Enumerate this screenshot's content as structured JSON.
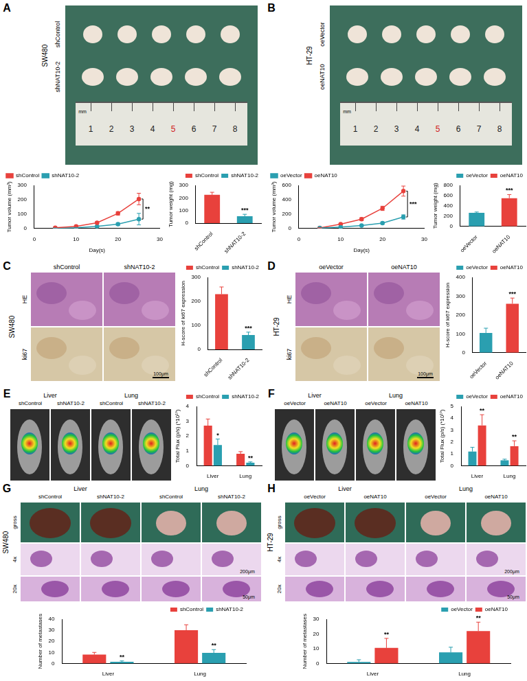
{
  "figure": {
    "photos": [
      {
        "panel": "A",
        "cell_line": "SW480",
        "rows": [
          "shControl",
          "shNAT10-2"
        ],
        "ruler": [
          1,
          2,
          3,
          4,
          5,
          6,
          7,
          8
        ],
        "ruler_unit": "mm"
      },
      {
        "panel": "B",
        "cell_line": "HT-29",
        "rows": [
          "oeVector",
          "oeNAT10"
        ],
        "ruler": [
          1,
          2,
          3,
          4,
          5,
          6,
          7,
          8
        ],
        "ruler_unit": "mm"
      },
      {
        "panel": "C",
        "cell_line": "SW480",
        "columns": [
          "shControl",
          "shNAT10-2"
        ],
        "rows": [
          "HE",
          "ki67"
        ],
        "scale_bar": "100μm"
      },
      {
        "panel": "D",
        "cell_line": "HT-29",
        "columns": [
          "oeVector",
          "oeNAT10"
        ],
        "rows": [
          "HE",
          "ki67"
        ],
        "scale_bar": "100μm"
      },
      {
        "panel": "E",
        "groups": [
          "Liver",
          "Lung"
        ],
        "columns": [
          "shControl",
          "shNAT10-2",
          "shControl",
          "shNAT10-2"
        ]
      },
      {
        "panel": "F",
        "groups": [
          "Liver",
          "Lung"
        ],
        "columns": [
          "oeVector",
          "oeNAT10",
          "oeVector",
          "oeNAT10"
        ]
      },
      {
        "panel": "G",
        "cell_line": "SW480",
        "groups": [
          "Liver",
          "Lung"
        ],
        "columns": [
          "shControl",
          "shNAT10-2",
          "shControl",
          "shNAT10-2"
        ],
        "rows": [
          "gross",
          "4x",
          "20x"
        ],
        "scale_bars": [
          "200μm",
          "50μm"
        ]
      },
      {
        "panel": "H",
        "cell_line": "HT-29",
        "groups": [
          "Liver",
          "Lung"
        ],
        "columns": [
          "oeVector",
          "oeNAT10",
          "oeVector",
          "oeNAT10"
        ],
        "rows": [
          "gross",
          "4x",
          "20x"
        ],
        "scale_bars": [
          "200μm",
          "50μm"
        ]
      }
    ]
  },
  "chart_data": [
    {
      "type": "line",
      "xlabel": "Day(s)",
      "ylabel": "Tumor volume (mm³)",
      "x": [
        5,
        10,
        15,
        20,
        25
      ],
      "xlim": [
        0,
        30
      ],
      "xticks": [
        0,
        10,
        20,
        30
      ],
      "ylim": [
        0,
        300
      ],
      "yticks": [
        0,
        100,
        200,
        300
      ],
      "grid": false,
      "legend": "top-left",
      "marker": "circle",
      "series": [
        {
          "name": "shControl",
          "color": "#e8413c",
          "values": [
            5,
            15,
            40,
            105,
            205
          ],
          "errors": [
            1,
            3,
            6,
            12,
            40
          ]
        },
        {
          "name": "shNAT10-2",
          "color": "#2a9fb0",
          "values": [
            2,
            5,
            15,
            30,
            65
          ],
          "errors": [
            1,
            2,
            4,
            8,
            40
          ]
        }
      ],
      "annotations": [
        {
          "text": "**",
          "x": 25
        }
      ]
    },
    {
      "type": "bar",
      "ylabel": "Tumor weight (mg)",
      "categories": [
        "shControl",
        "shNAT10-2"
      ],
      "values": [
        225,
        55
      ],
      "errors": [
        20,
        15
      ],
      "colors": [
        "#e8413c",
        "#2a9fb0"
      ],
      "ylim": [
        0,
        300
      ],
      "yticks": [
        0,
        100,
        200,
        300
      ],
      "grid": false,
      "legend": "top-right",
      "annotations": [
        {
          "text": "***",
          "index": 1
        }
      ]
    },
    {
      "type": "line",
      "xlabel": "Day(s)",
      "ylabel": "Tumor volume (mm³)",
      "x": [
        5,
        10,
        15,
        20,
        25
      ],
      "xlim": [
        0,
        30
      ],
      "xticks": [
        0,
        10,
        20,
        30
      ],
      "ylim": [
        0,
        600
      ],
      "yticks": [
        0,
        200,
        400,
        600
      ],
      "grid": false,
      "legend": "top-left",
      "marker": "circle",
      "series": [
        {
          "name": "oeVector",
          "color": "#2a9fb0",
          "values": [
            5,
            20,
            40,
            75,
            160
          ],
          "errors": [
            1,
            5,
            8,
            15,
            30
          ]
        },
        {
          "name": "oeNAT10",
          "color": "#e8413c",
          "values": [
            8,
            60,
            130,
            280,
            520
          ],
          "errors": [
            2,
            10,
            20,
            30,
            70
          ]
        }
      ],
      "annotations": [
        {
          "text": "***",
          "x": 25
        }
      ]
    },
    {
      "type": "bar",
      "ylabel": "Tumor weight (mg)",
      "categories": [
        "oeVector",
        "oeNAT10"
      ],
      "values": [
        265,
        550
      ],
      "errors": [
        15,
        70
      ],
      "colors": [
        "#2a9fb0",
        "#e8413c"
      ],
      "ylim": [
        0,
        800
      ],
      "yticks": [
        0,
        200,
        400,
        600,
        800
      ],
      "grid": false,
      "legend": "top-right",
      "annotations": [
        {
          "text": "***",
          "index": 1
        }
      ]
    },
    {
      "type": "bar",
      "ylabel": "H-score of ki67 expression",
      "categories": [
        "shControl",
        "shNAT10-2"
      ],
      "values": [
        230,
        60
      ],
      "errors": [
        30,
        12
      ],
      "colors": [
        "#e8413c",
        "#2a9fb0"
      ],
      "ylim": [
        0,
        300
      ],
      "yticks": [
        0,
        100,
        200,
        300
      ],
      "grid": false,
      "legend": "top-right",
      "annotations": [
        {
          "text": "***",
          "index": 1
        }
      ]
    },
    {
      "type": "bar",
      "ylabel": "H-score of ki67 expression",
      "categories": [
        "oeVector",
        "oeNAT10"
      ],
      "values": [
        105,
        260
      ],
      "errors": [
        25,
        30
      ],
      "colors": [
        "#2a9fb0",
        "#e8413c"
      ],
      "ylim": [
        0,
        400
      ],
      "yticks": [
        0,
        100,
        200,
        300,
        400
      ],
      "grid": false,
      "legend": "top-right",
      "annotations": [
        {
          "text": "***",
          "index": 1
        }
      ]
    },
    {
      "type": "bar",
      "ylabel": "Total Flux (p/s) (*10¹⁰)",
      "categories": [
        "Liver",
        "Lung"
      ],
      "series": [
        {
          "name": "shControl",
          "color": "#e8413c",
          "values": [
            2.7,
            0.8
          ],
          "errors": [
            0.45,
            0.15
          ]
        },
        {
          "name": "shNAT10-2",
          "color": "#2a9fb0",
          "values": [
            1.4,
            0.2
          ],
          "errors": [
            0.4,
            0.06
          ]
        }
      ],
      "ylim": [
        0,
        4
      ],
      "yticks": [
        0,
        1,
        2,
        3,
        4
      ],
      "grid": false,
      "legend": "top-right",
      "annotations": [
        {
          "text": "*",
          "series": 1,
          "index": 0
        },
        {
          "text": "**",
          "series": 1,
          "index": 1
        }
      ]
    },
    {
      "type": "bar",
      "ylabel": "Total Flux (p/s) (*10¹⁰)",
      "categories": [
        "Liver",
        "Lung"
      ],
      "series": [
        {
          "name": "oeVector",
          "color": "#2a9fb0",
          "values": [
            1.2,
            0.45
          ],
          "errors": [
            0.35,
            0.1
          ]
        },
        {
          "name": "oeNAT10",
          "color": "#e8413c",
          "values": [
            3.4,
            1.65
          ],
          "errors": [
            0.9,
            0.45
          ]
        }
      ],
      "ylim": [
        0,
        5
      ],
      "yticks": [
        0,
        1,
        2,
        3,
        4,
        5
      ],
      "grid": false,
      "legend": "top-right",
      "annotations": [
        {
          "text": "**",
          "series": 1,
          "index": 0
        },
        {
          "text": "**",
          "series": 1,
          "index": 1
        }
      ]
    },
    {
      "type": "bar",
      "ylabel": "Number of metastases",
      "categories": [
        "Liver",
        "Lung"
      ],
      "series": [
        {
          "name": "shControl",
          "color": "#e8413c",
          "values": [
            8,
            30
          ],
          "errors": [
            2,
            5
          ]
        },
        {
          "name": "shNAT10-2",
          "color": "#2a9fb0",
          "values": [
            1.5,
            9.5
          ],
          "errors": [
            0.8,
            3
          ]
        }
      ],
      "ylim": [
        0,
        40
      ],
      "yticks": [
        0,
        10,
        20,
        30,
        40
      ],
      "grid": false,
      "legend": "top-right",
      "annotations": [
        {
          "text": "**",
          "series": 1,
          "index": 0
        },
        {
          "text": "**",
          "series": 1,
          "index": 1
        }
      ]
    },
    {
      "type": "bar",
      "ylabel": "Number of metastases",
      "categories": [
        "Liver",
        "Lung"
      ],
      "series": [
        {
          "name": "oeVector",
          "color": "#2a9fb0",
          "values": [
            1,
            7.5
          ],
          "errors": [
            1.5,
            3.5
          ]
        },
        {
          "name": "oeNAT10",
          "color": "#e8413c",
          "values": [
            10.5,
            22
          ],
          "errors": [
            6.5,
            6
          ]
        }
      ],
      "ylim": [
        0,
        30
      ],
      "yticks": [
        0,
        10,
        20,
        30
      ],
      "grid": false,
      "legend": "top-right",
      "annotations": [
        {
          "text": "**",
          "series": 1,
          "index": 0
        },
        {
          "text": "**",
          "series": 1,
          "index": 1
        }
      ]
    }
  ]
}
